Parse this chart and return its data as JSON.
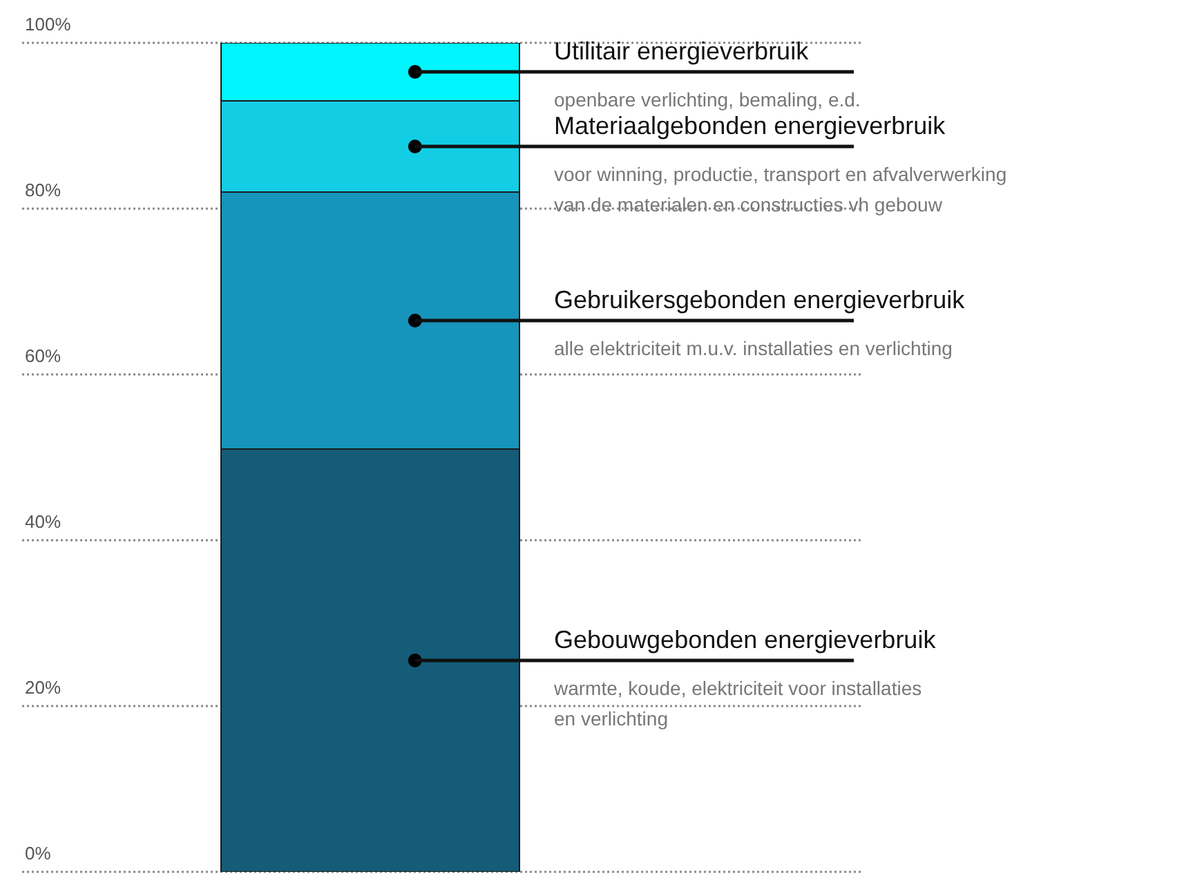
{
  "chart_data": {
    "type": "bar",
    "stacked": true,
    "categories": [
      null
    ],
    "series": [
      {
        "name": "Gebouwgebonden energieverbruik",
        "color": "#145c78",
        "values": [
          51
        ]
      },
      {
        "name": "Gebruikersgebonden energieverbruik",
        "color": "#1794bb",
        "values": [
          31
        ]
      },
      {
        "name": "Materiaalgebonden energieverbruik",
        "color": "#13cde5",
        "values": [
          11
        ]
      },
      {
        "name": "Utilitair energieverbruik",
        "color": "#00f5fd",
        "values": [
          7
        ]
      }
    ],
    "annotations": [
      "warmte, koude, elektriciteit voor installaties\nen verlichting",
      "alle elektriciteit m.u.v. installaties en verlichting",
      "voor winning, productie, transport en afvalverwerking\nvan de materialen en constructies vh gebouw",
      "openbare verlichting, bemaling, e.d."
    ],
    "ylim": [
      0,
      100
    ],
    "yticks": [
      {
        "value": 0,
        "label": "0%"
      },
      {
        "value": 20,
        "label": "20%"
      },
      {
        "value": 40,
        "label": "40%"
      },
      {
        "value": 60,
        "label": "60%"
      },
      {
        "value": 80,
        "label": "80%"
      },
      {
        "value": 100,
        "label": "100%"
      }
    ],
    "grid": "y"
  }
}
